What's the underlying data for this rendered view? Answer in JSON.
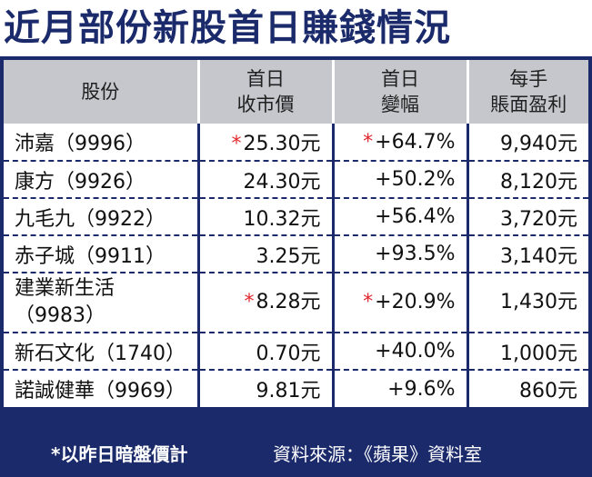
{
  "title": "近月部份新股首日賺錢情況",
  "table": {
    "headers": [
      {
        "line1": "股份",
        "line2": ""
      },
      {
        "line1": "首日",
        "line2": "收市價"
      },
      {
        "line1": "首日",
        "line2": "變幅"
      },
      {
        "line1": "每手",
        "line2": "賬面盈利"
      }
    ],
    "rows": [
      {
        "name": "沛嘉（9996）",
        "name_line2": "",
        "close": "25.30元",
        "change": "+64.7%",
        "profit": "9,940元",
        "starred": true
      },
      {
        "name": "康方（9926）",
        "name_line2": "",
        "close": "24.30元",
        "change": "+50.2%",
        "profit": "8,120元",
        "starred": false
      },
      {
        "name": "九毛九（9922）",
        "name_line2": "",
        "close": "10.32元",
        "change": "+56.4%",
        "profit": "3,720元",
        "starred": false
      },
      {
        "name": "赤子城（9911）",
        "name_line2": "",
        "close": "3.25元",
        "change": "+93.5%",
        "profit": "3,140元",
        "starred": false
      },
      {
        "name": "建業新生活",
        "name_line2": "（9983）",
        "close": "8.28元",
        "change": "+20.9%",
        "profit": "1,430元",
        "starred": true
      },
      {
        "name": "新石文化（1740）",
        "name_line2": "",
        "close": "0.70元",
        "change": "+40.0%",
        "profit": "1,000元",
        "starred": false
      },
      {
        "name": "諾誠健華（9969）",
        "name_line2": "",
        "close": "9.81元",
        "change": "+9.6%",
        "profit": "860元",
        "starred": false
      }
    ],
    "star_symbol": "*"
  },
  "footer": {
    "note": "*以昨日暗盤價計",
    "source": "資料來源：《蘋果》資料室"
  },
  "colors": {
    "navy": "#1b2a6b",
    "header_gray": "#c5c7cc",
    "star_red": "#e0282d"
  }
}
